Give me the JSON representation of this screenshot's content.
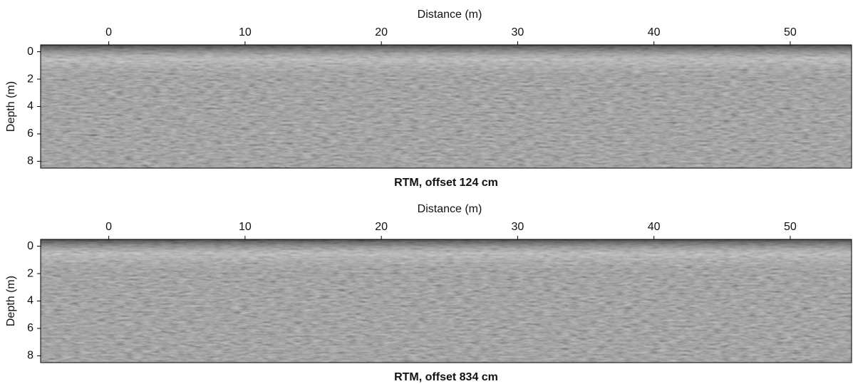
{
  "chart_data": [
    {
      "type": "heatmap",
      "title": "RTM, offset 124 cm",
      "xlabel": "Distance (m)",
      "ylabel": "Depth (m)",
      "xlim": [
        -5,
        54.5
      ],
      "xticks": [
        0,
        10,
        20,
        30,
        40,
        50
      ],
      "ylim": [
        8.5,
        -0.5
      ],
      "yticks": [
        0,
        2,
        4,
        6,
        8
      ]
    },
    {
      "type": "heatmap",
      "title": "RTM, offset 834 cm",
      "xlabel": "Distance (m)",
      "ylabel": "Depth (m)",
      "xlim": [
        -5,
        54.5
      ],
      "xticks": [
        0,
        10,
        20,
        30,
        40,
        50
      ],
      "ylim": [
        8.5,
        -0.5
      ],
      "yticks": [
        0,
        2,
        4,
        6,
        8
      ]
    }
  ]
}
